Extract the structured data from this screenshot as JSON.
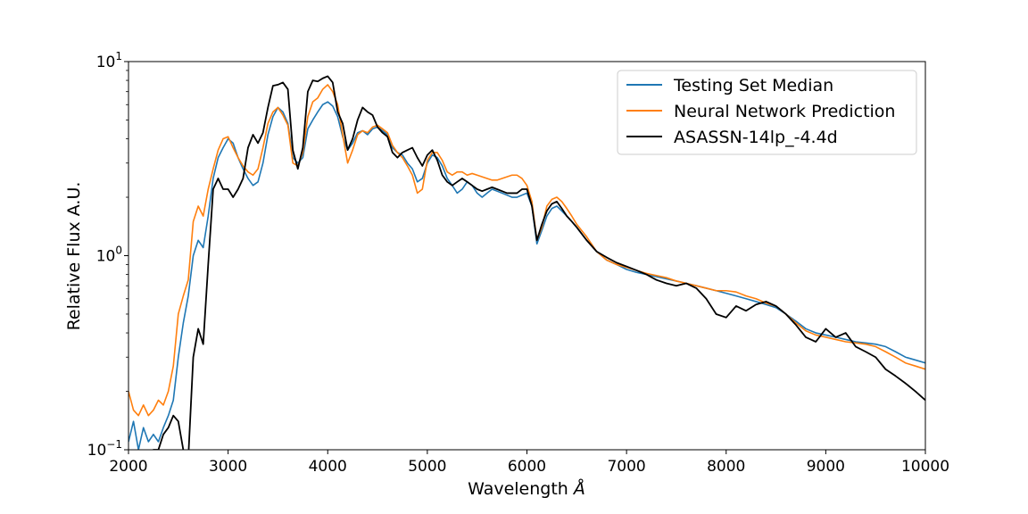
{
  "chart_data": {
    "type": "line",
    "xlabel": "Wavelength ",
    "xlabel_symbol": "Å",
    "ylabel": "Relative Flux A.U.",
    "xlim": [
      2000,
      10000
    ],
    "ylim": [
      0.1,
      10
    ],
    "yscale": "log",
    "legend_position": "top-right",
    "x_ticks": [
      2000,
      3000,
      4000,
      5000,
      6000,
      7000,
      8000,
      9000,
      10000
    ],
    "x_tick_labels": [
      "2000",
      "3000",
      "4000",
      "5000",
      "6000",
      "7000",
      "8000",
      "9000",
      "10000"
    ],
    "y_ticks": [
      0.1,
      1,
      10
    ],
    "y_tick_labels": [
      {
        "base": "10",
        "exp": "−1"
      },
      {
        "base": "10",
        "exp": "0"
      },
      {
        "base": "10",
        "exp": "1"
      }
    ],
    "series": [
      {
        "name": "Testing Set Median",
        "color": "#1f77b4",
        "x": [
          2000,
          2050,
          2100,
          2150,
          2200,
          2250,
          2300,
          2350,
          2400,
          2450,
          2500,
          2550,
          2600,
          2650,
          2700,
          2750,
          2800,
          2850,
          2900,
          2950,
          3000,
          3050,
          3100,
          3150,
          3200,
          3250,
          3300,
          3350,
          3400,
          3450,
          3500,
          3550,
          3600,
          3650,
          3700,
          3750,
          3800,
          3850,
          3900,
          3950,
          4000,
          4050,
          4100,
          4150,
          4200,
          4250,
          4300,
          4350,
          4400,
          4450,
          4500,
          4550,
          4600,
          4650,
          4700,
          4750,
          4800,
          4850,
          4900,
          4950,
          5000,
          5050,
          5100,
          5150,
          5200,
          5250,
          5300,
          5350,
          5400,
          5450,
          5500,
          5550,
          5600,
          5650,
          5700,
          5750,
          5800,
          5850,
          5900,
          5950,
          6000,
          6050,
          6100,
          6150,
          6200,
          6250,
          6300,
          6350,
          6400,
          6450,
          6500,
          6600,
          6700,
          6800,
          6900,
          7000,
          7100,
          7200,
          7300,
          7400,
          7500,
          7600,
          7700,
          7800,
          7900,
          8000,
          8100,
          8200,
          8300,
          8400,
          8500,
          8600,
          8700,
          8800,
          8900,
          9000,
          9100,
          9200,
          9300,
          9400,
          9500,
          9600,
          9700,
          9800,
          9900,
          10000
        ],
        "y": [
          0.11,
          0.14,
          0.1,
          0.13,
          0.11,
          0.12,
          0.11,
          0.13,
          0.15,
          0.18,
          0.3,
          0.45,
          0.62,
          1.0,
          1.2,
          1.1,
          1.6,
          2.5,
          3.2,
          3.6,
          4.0,
          3.8,
          3.2,
          2.8,
          2.5,
          2.3,
          2.4,
          3.0,
          4.2,
          5.2,
          5.8,
          5.5,
          4.8,
          3.2,
          3.0,
          3.2,
          4.5,
          5.0,
          5.5,
          6.0,
          6.2,
          5.9,
          5.2,
          4.1,
          3.5,
          3.8,
          4.3,
          4.4,
          4.2,
          4.5,
          4.6,
          4.4,
          4.2,
          3.6,
          3.4,
          3.3,
          3.0,
          2.8,
          2.4,
          2.5,
          3.0,
          3.3,
          3.2,
          2.9,
          2.5,
          2.3,
          2.1,
          2.2,
          2.4,
          2.3,
          2.1,
          2.0,
          2.1,
          2.2,
          2.15,
          2.1,
          2.05,
          2.0,
          2.0,
          2.05,
          2.1,
          1.8,
          1.15,
          1.35,
          1.6,
          1.75,
          1.8,
          1.7,
          1.6,
          1.5,
          1.4,
          1.2,
          1.05,
          0.95,
          0.9,
          0.85,
          0.82,
          0.8,
          0.78,
          0.76,
          0.74,
          0.72,
          0.7,
          0.68,
          0.66,
          0.64,
          0.62,
          0.6,
          0.58,
          0.56,
          0.54,
          0.5,
          0.46,
          0.42,
          0.4,
          0.39,
          0.38,
          0.37,
          0.36,
          0.355,
          0.35,
          0.34,
          0.32,
          0.3,
          0.29,
          0.28
        ]
      },
      {
        "name": "Neural Network Prediction",
        "color": "#ff7f0e",
        "x": [
          2000,
          2050,
          2100,
          2150,
          2200,
          2250,
          2300,
          2350,
          2400,
          2450,
          2500,
          2550,
          2600,
          2650,
          2700,
          2750,
          2800,
          2850,
          2900,
          2950,
          3000,
          3050,
          3100,
          3150,
          3200,
          3250,
          3300,
          3350,
          3400,
          3450,
          3500,
          3550,
          3600,
          3650,
          3700,
          3750,
          3800,
          3850,
          3900,
          3950,
          4000,
          4050,
          4100,
          4150,
          4200,
          4250,
          4300,
          4350,
          4400,
          4450,
          4500,
          4550,
          4600,
          4650,
          4700,
          4750,
          4800,
          4850,
          4900,
          4950,
          5000,
          5050,
          5100,
          5150,
          5200,
          5250,
          5300,
          5350,
          5400,
          5450,
          5500,
          5550,
          5600,
          5650,
          5700,
          5750,
          5800,
          5850,
          5900,
          5950,
          6000,
          6050,
          6100,
          6150,
          6200,
          6250,
          6300,
          6350,
          6400,
          6450,
          6500,
          6600,
          6700,
          6800,
          6900,
          7000,
          7100,
          7200,
          7300,
          7400,
          7500,
          7600,
          7700,
          7800,
          7900,
          8000,
          8100,
          8200,
          8300,
          8400,
          8500,
          8600,
          8700,
          8800,
          8900,
          9000,
          9100,
          9200,
          9300,
          9400,
          9500,
          9600,
          9700,
          9800,
          9900,
          10000
        ],
        "y": [
          0.2,
          0.16,
          0.15,
          0.17,
          0.15,
          0.16,
          0.18,
          0.17,
          0.2,
          0.27,
          0.5,
          0.62,
          0.75,
          1.5,
          1.8,
          1.6,
          2.2,
          2.8,
          3.5,
          4.0,
          4.1,
          3.6,
          3.2,
          2.9,
          2.7,
          2.6,
          2.8,
          3.6,
          4.8,
          5.5,
          5.8,
          5.3,
          4.7,
          3.0,
          2.9,
          3.4,
          5.2,
          6.2,
          6.5,
          7.2,
          7.6,
          7.0,
          6.0,
          4.2,
          3.0,
          3.5,
          4.2,
          4.4,
          4.3,
          4.6,
          4.7,
          4.5,
          4.3,
          3.7,
          3.4,
          3.2,
          2.9,
          2.6,
          2.1,
          2.2,
          3.1,
          3.4,
          3.4,
          3.1,
          2.7,
          2.6,
          2.7,
          2.7,
          2.6,
          2.65,
          2.6,
          2.55,
          2.5,
          2.45,
          2.45,
          2.5,
          2.55,
          2.6,
          2.6,
          2.5,
          2.3,
          1.9,
          1.2,
          1.4,
          1.8,
          1.95,
          2.0,
          1.9,
          1.75,
          1.6,
          1.45,
          1.25,
          1.05,
          0.95,
          0.9,
          0.87,
          0.84,
          0.81,
          0.79,
          0.77,
          0.74,
          0.72,
          0.7,
          0.68,
          0.66,
          0.66,
          0.65,
          0.62,
          0.6,
          0.57,
          0.55,
          0.5,
          0.45,
          0.41,
          0.39,
          0.38,
          0.37,
          0.36,
          0.355,
          0.35,
          0.34,
          0.32,
          0.3,
          0.28,
          0.27,
          0.26
        ]
      },
      {
        "name": "ASASSN-14lp_-4.4d",
        "color": "#000000",
        "x": [
          2000,
          2050,
          2100,
          2150,
          2200,
          2250,
          2300,
          2350,
          2400,
          2450,
          2500,
          2550,
          2600,
          2650,
          2700,
          2750,
          2800,
          2850,
          2900,
          2950,
          3000,
          3050,
          3100,
          3150,
          3200,
          3250,
          3300,
          3350,
          3400,
          3450,
          3500,
          3550,
          3600,
          3650,
          3700,
          3750,
          3800,
          3850,
          3900,
          3950,
          4000,
          4050,
          4100,
          4150,
          4200,
          4250,
          4300,
          4350,
          4400,
          4450,
          4500,
          4550,
          4600,
          4650,
          4700,
          4750,
          4800,
          4850,
          4900,
          4950,
          5000,
          5050,
          5100,
          5150,
          5200,
          5250,
          5300,
          5350,
          5400,
          5450,
          5500,
          5550,
          5600,
          5650,
          5700,
          5750,
          5800,
          5850,
          5900,
          5950,
          6000,
          6050,
          6100,
          6150,
          6200,
          6250,
          6300,
          6350,
          6400,
          6450,
          6500,
          6600,
          6700,
          6800,
          6900,
          7000,
          7100,
          7200,
          7300,
          7400,
          7500,
          7600,
          7700,
          7800,
          7900,
          8000,
          8100,
          8200,
          8300,
          8400,
          8500,
          8600,
          8700,
          8800,
          8900,
          9000,
          9100,
          9200,
          9300,
          9400,
          9500,
          9600,
          9700,
          9800,
          9900,
          10000
        ],
        "y": [
          0.08,
          0.08,
          0.08,
          0.08,
          0.09,
          0.1,
          0.1,
          0.12,
          0.13,
          0.15,
          0.14,
          0.1,
          0.09,
          0.3,
          0.42,
          0.35,
          0.9,
          2.2,
          2.5,
          2.2,
          2.2,
          2.0,
          2.2,
          2.5,
          3.6,
          4.2,
          3.8,
          4.3,
          5.8,
          7.5,
          7.6,
          7.8,
          7.2,
          3.5,
          2.8,
          3.6,
          7.0,
          8.0,
          7.9,
          8.2,
          8.4,
          7.8,
          5.5,
          4.8,
          3.5,
          4.0,
          5.0,
          5.8,
          5.5,
          5.3,
          4.6,
          4.3,
          4.1,
          3.4,
          3.2,
          3.4,
          3.5,
          3.6,
          3.2,
          2.9,
          3.3,
          3.5,
          3.1,
          2.6,
          2.4,
          2.3,
          2.4,
          2.5,
          2.4,
          2.3,
          2.2,
          2.15,
          2.2,
          2.25,
          2.2,
          2.15,
          2.1,
          2.1,
          2.1,
          2.2,
          2.2,
          1.8,
          1.2,
          1.45,
          1.7,
          1.85,
          1.9,
          1.75,
          1.6,
          1.5,
          1.4,
          1.2,
          1.05,
          0.98,
          0.92,
          0.88,
          0.84,
          0.8,
          0.75,
          0.72,
          0.7,
          0.72,
          0.68,
          0.6,
          0.5,
          0.48,
          0.55,
          0.52,
          0.56,
          0.58,
          0.55,
          0.5,
          0.44,
          0.38,
          0.36,
          0.42,
          0.38,
          0.4,
          0.34,
          0.32,
          0.3,
          0.26,
          0.24,
          0.22,
          0.2,
          0.18
        ]
      }
    ]
  }
}
